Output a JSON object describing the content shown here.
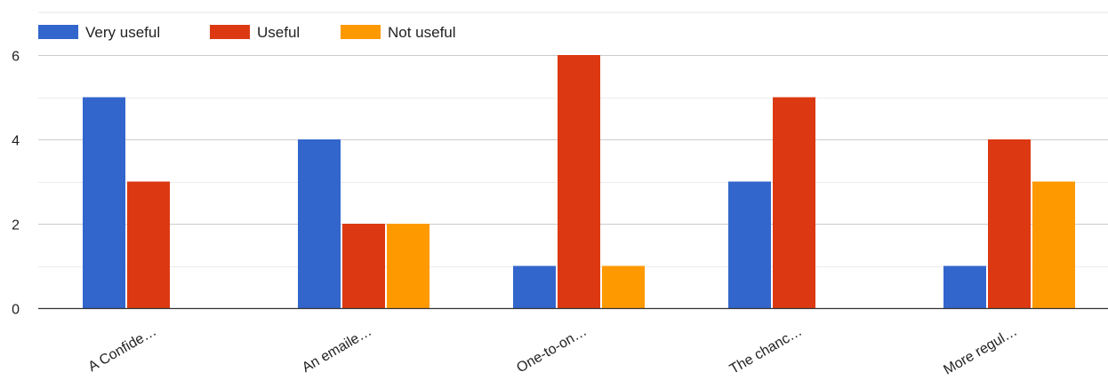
{
  "chart_data": {
    "type": "bar",
    "categories": [
      "A Confide…",
      "An emaile…",
      "One-to-on…",
      "The chanc…",
      "More regul…"
    ],
    "series": [
      {
        "name": "Very useful",
        "values": [
          5,
          4,
          1,
          3,
          1
        ]
      },
      {
        "name": "Useful",
        "values": [
          3,
          2,
          6,
          5,
          4
        ]
      },
      {
        "name": "Not useful",
        "values": [
          0,
          2,
          1,
          0,
          3
        ]
      }
    ],
    "colors": [
      "#3366cc",
      "#dc3912",
      "#ff9900"
    ],
    "ylim": [
      0,
      6.5
    ],
    "yticks": [
      0,
      2,
      4,
      6
    ],
    "minor_gridlines": [
      1,
      3,
      5
    ],
    "grid": true,
    "legend_position": "top-left",
    "title": "",
    "xlabel": "",
    "ylabel": ""
  }
}
